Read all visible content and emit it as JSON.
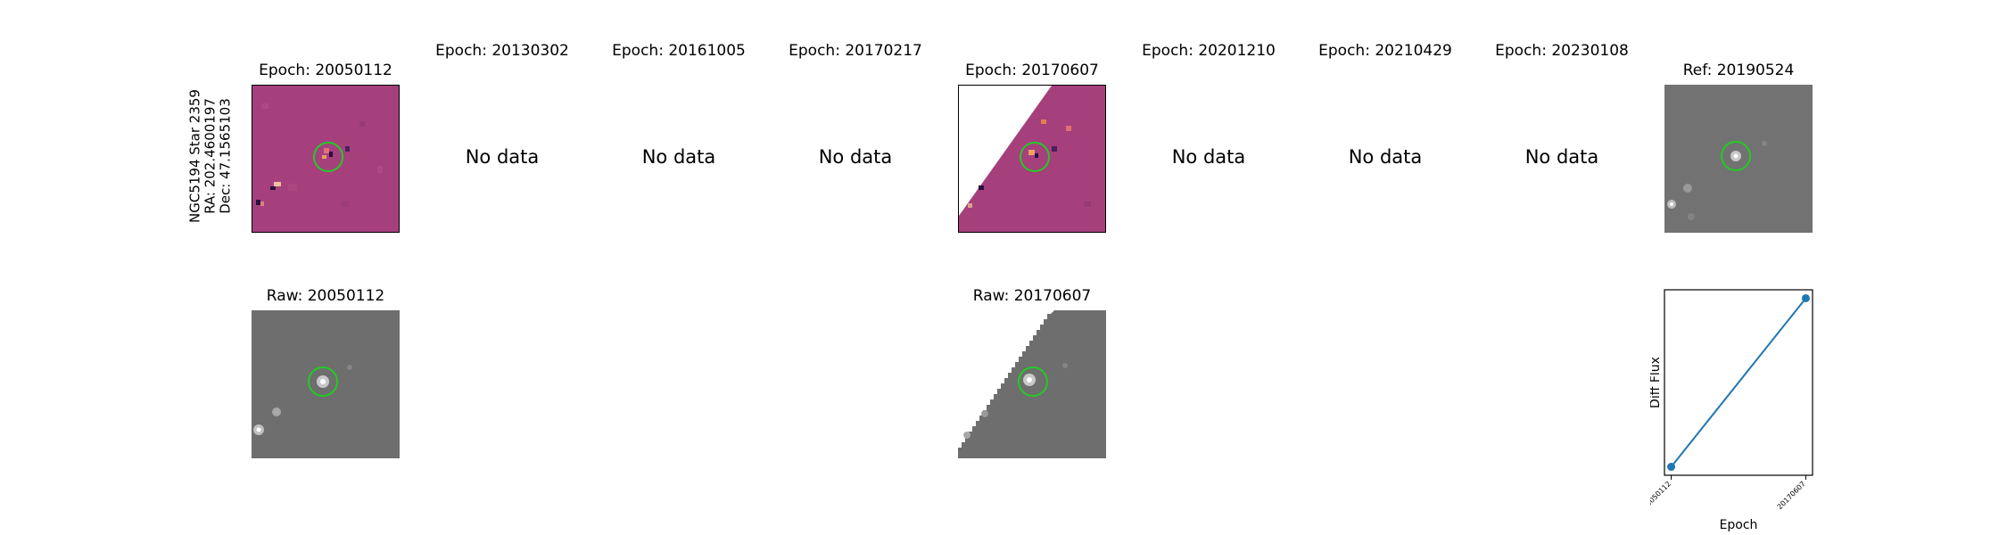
{
  "target": {
    "name": "NGC5194 Star 2359",
    "ra": "RA: 202.4600197",
    "dec": "Dec: 47.1565103"
  },
  "no_data_text": "No data",
  "epochs": [
    {
      "title": "Epoch: 20050112",
      "has_data": true,
      "raw_title": "Raw: 20050112"
    },
    {
      "title": "Epoch: 20130302",
      "has_data": false
    },
    {
      "title": "Epoch: 20161005",
      "has_data": false
    },
    {
      "title": "Epoch: 20170217",
      "has_data": false
    },
    {
      "title": "Epoch: 20170607",
      "has_data": true,
      "raw_title": "Raw: 20170607"
    },
    {
      "title": "Epoch: 20201210",
      "has_data": false
    },
    {
      "title": "Epoch: 20210429",
      "has_data": false
    },
    {
      "title": "Epoch: 20230108",
      "has_data": false
    }
  ],
  "reference": {
    "title": "Ref: 20190524"
  },
  "colors": {
    "diff_bg": "#a5407d",
    "raw_bg": "#6e6e6e",
    "circle": "#22cc22",
    "line": "#1f77b4"
  },
  "chart_data": {
    "type": "line",
    "x": [
      "20050112",
      "20170607"
    ],
    "values": [
      0.0,
      1.0
    ],
    "xlabel": "Epoch",
    "ylabel": "Diff Flux",
    "y_ticks_shown": false,
    "grid": false,
    "markers": true
  }
}
